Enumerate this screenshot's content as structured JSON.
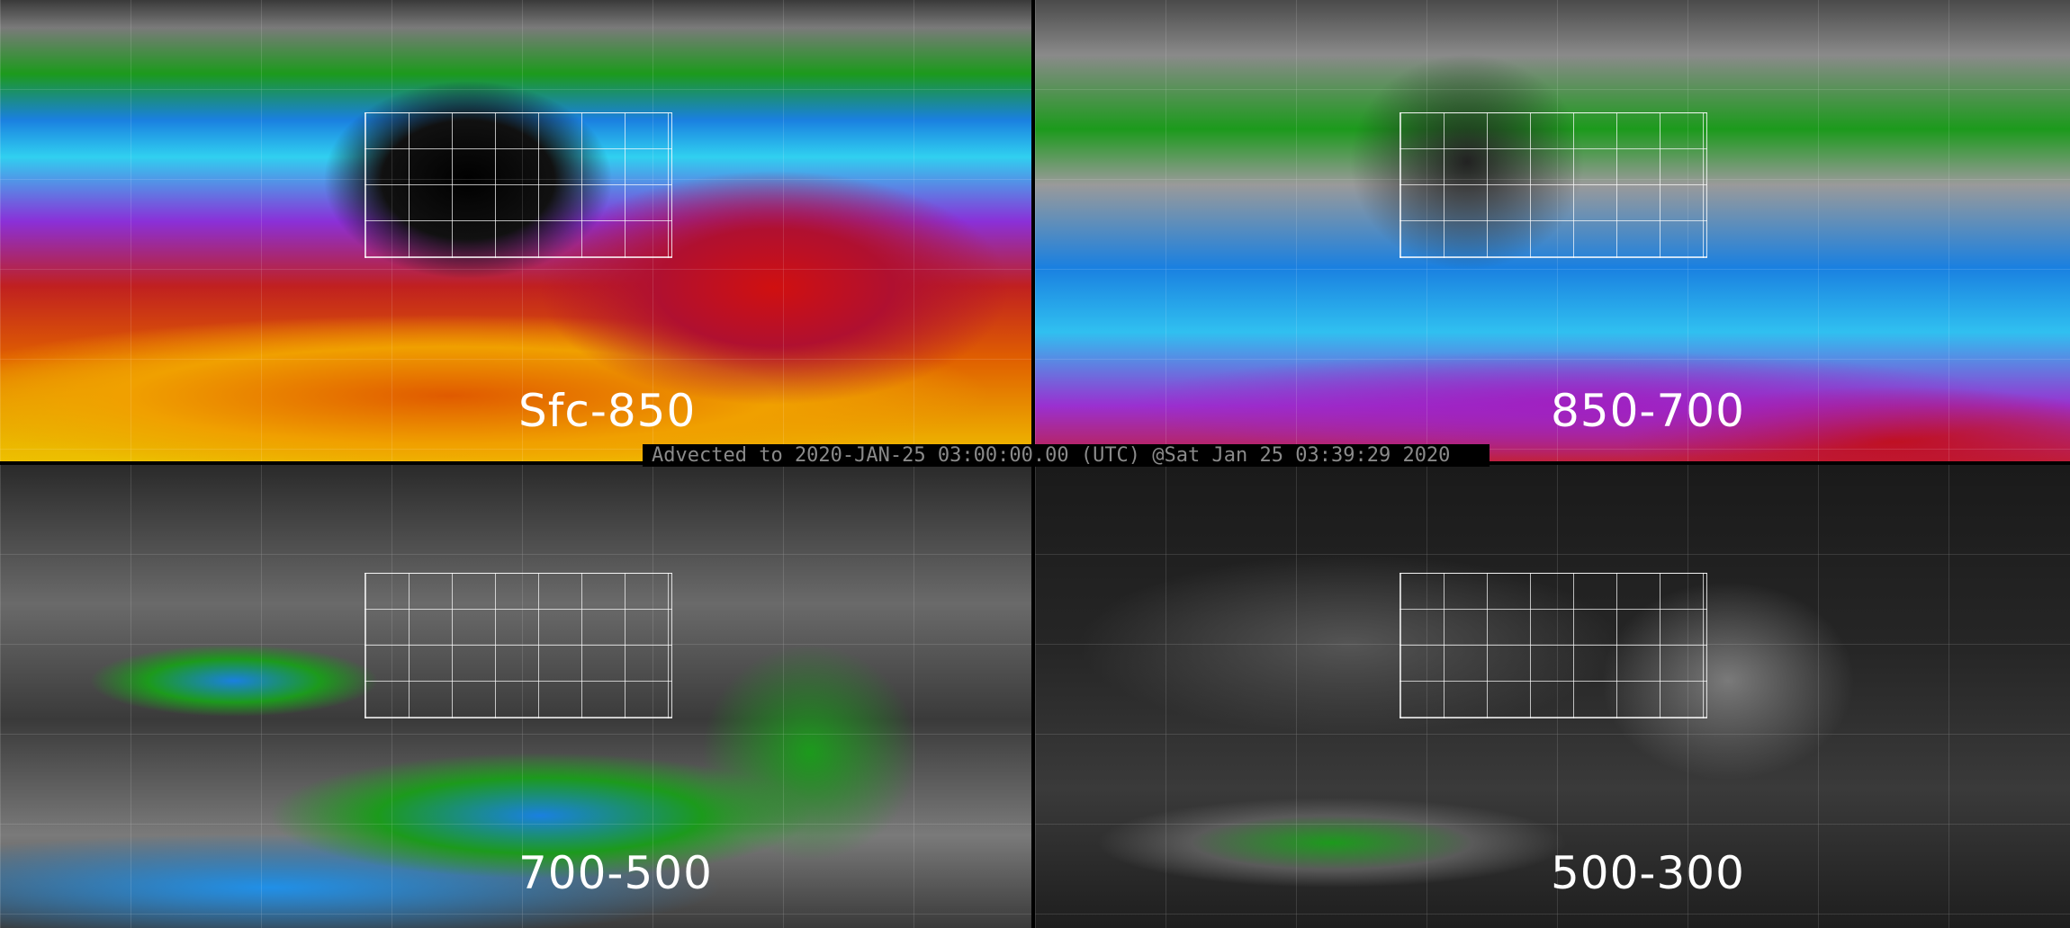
{
  "panels": [
    {
      "label": "Sfc-850"
    },
    {
      "label": "850-700"
    },
    {
      "label": "700-500"
    },
    {
      "label": "500-300"
    }
  ],
  "banner": "Advected to 2020-JAN-25 03:00:00.00 (UTC) @Sat Jan 25 03:39:29 2020"
}
